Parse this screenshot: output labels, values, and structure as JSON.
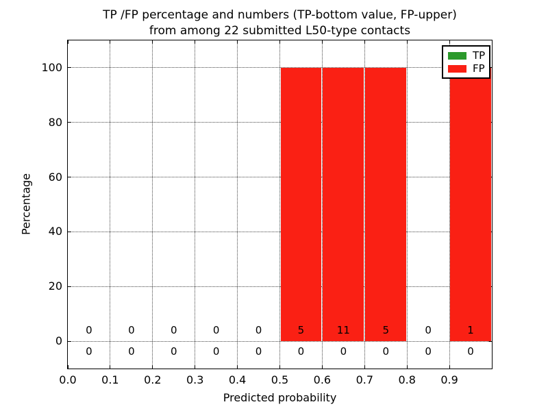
{
  "title": {
    "line1": "TP /FP percentage and numbers (TP-bottom value, FP-upper)",
    "line2": "from among 22 submitted L50-type contacts"
  },
  "axes": {
    "xlabel": "Predicted probability",
    "ylabel": "Percentage"
  },
  "colors": {
    "tp": "#2b992b",
    "fp": "#fa2014",
    "grid": "#444444",
    "text": "#000000"
  },
  "chart_data": {
    "type": "bar",
    "title": "TP /FP percentage and numbers (TP-bottom value, FP-upper) from among 22 submitted L50-type contacts",
    "xlabel": "Predicted probability",
    "ylabel": "Percentage",
    "xlim": [
      0.0,
      1.0
    ],
    "ylim": [
      -10,
      110
    ],
    "grid": true,
    "legend_position": "upper right",
    "xticks": {
      "values": [
        0.0,
        0.1,
        0.2,
        0.3,
        0.4,
        0.5,
        0.6,
        0.7,
        0.8,
        0.9
      ],
      "labels": [
        "0.0",
        "0.1",
        "0.2",
        "0.3",
        "0.4",
        "0.5",
        "0.6",
        "0.7",
        "0.8",
        "0.9"
      ]
    },
    "yticks": {
      "values": [
        0,
        20,
        40,
        60,
        80,
        100
      ],
      "labels": [
        "0",
        "20",
        "40",
        "60",
        "80",
        "100"
      ]
    },
    "bin_edges": [
      0.0,
      0.1,
      0.2,
      0.3,
      0.4,
      0.5,
      0.6,
      0.7,
      0.8,
      0.9,
      1.0
    ],
    "series": [
      {
        "name": "TP",
        "color": "#2b992b",
        "percent": [
          0,
          0,
          0,
          0,
          0,
          0,
          0,
          0,
          0,
          0
        ],
        "counts": [
          0,
          0,
          0,
          0,
          0,
          0,
          0,
          0,
          0,
          0
        ],
        "count_label_row": "lower"
      },
      {
        "name": "FP",
        "color": "#fa2014",
        "percent": [
          0,
          0,
          0,
          0,
          0,
          100,
          100,
          100,
          0,
          100
        ],
        "counts": [
          0,
          0,
          0,
          0,
          0,
          5,
          11,
          5,
          0,
          1
        ],
        "count_label_row": "upper"
      }
    ]
  }
}
